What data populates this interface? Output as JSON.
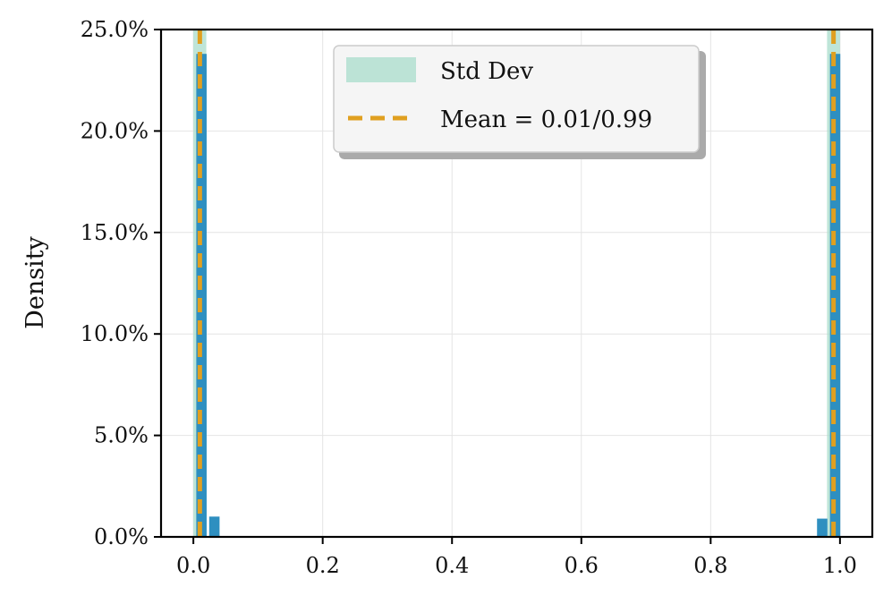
{
  "chart_data": {
    "type": "bar",
    "title": "",
    "xlabel": "",
    "ylabel": "Density",
    "xlim": [
      -0.05,
      1.05
    ],
    "ylim": [
      0,
      25
    ],
    "x_ticks": [
      0.0,
      0.2,
      0.4,
      0.6,
      0.8,
      1.0
    ],
    "x_tick_labels": [
      "0.0",
      "0.2",
      "0.4",
      "0.6",
      "0.8",
      "1.0"
    ],
    "y_ticks": [
      0,
      5,
      10,
      15,
      20,
      25
    ],
    "y_tick_labels": [
      "0.0%",
      "5.0%",
      "10.0%",
      "15.0%",
      "20.0%",
      "25.0%"
    ],
    "grid": true,
    "legend_position": "top-center",
    "bar_width": 0.016,
    "bars": [
      {
        "x": 0.0125,
        "value": 23.8
      },
      {
        "x": 0.0325,
        "value": 1.0
      },
      {
        "x": 0.9725,
        "value": 0.9
      },
      {
        "x": 0.9925,
        "value": 23.8
      }
    ],
    "std_bands": [
      {
        "x0": 0.0,
        "x1": 0.02
      },
      {
        "x0": 0.98,
        "x1": 1.0
      }
    ],
    "mean_lines": [
      0.01,
      0.99
    ],
    "legend": [
      {
        "label": "Std Dev",
        "kind": "band"
      },
      {
        "label": "Mean = 0.01/0.99",
        "kind": "dashed-line"
      }
    ],
    "colors": {
      "bar": "#2E8FC0",
      "band": "#A8DCCB",
      "mean": "#E0A020",
      "grid": "#E4E4E4"
    }
  }
}
